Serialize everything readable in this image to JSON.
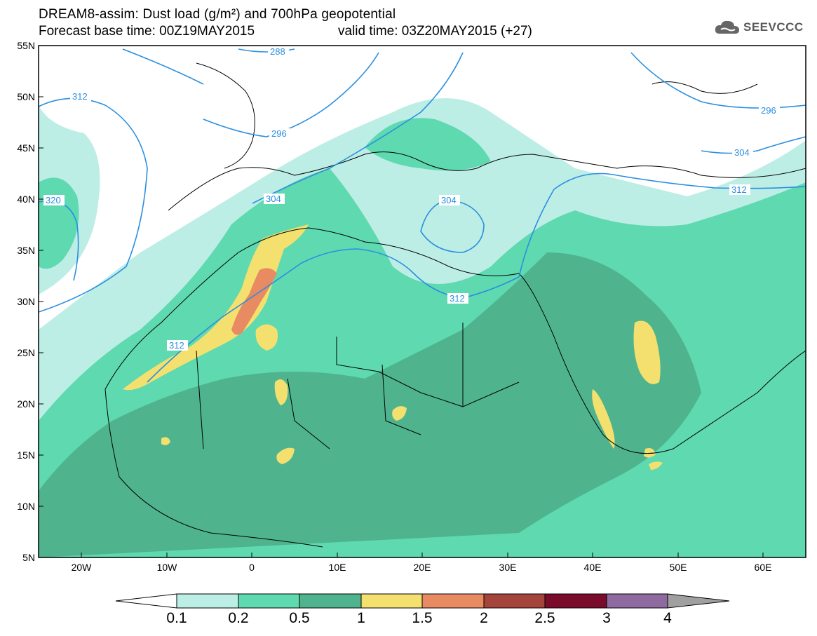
{
  "header": {
    "title_line1": "DREAM8-assim: Dust load (g/m²) and 700hPa geopotential",
    "base_time": "Forecast base time: 00Z19MAY2015",
    "valid_time": "valid time: 03Z20MAY2015 (+27)"
  },
  "logo": {
    "text": "SEEVCCC",
    "icon": "cloud-icon"
  },
  "map": {
    "lat_labels": [
      "55N",
      "50N",
      "45N",
      "40N",
      "35N",
      "30N",
      "25N",
      "20N",
      "15N",
      "10N",
      "5N"
    ],
    "lon_labels": [
      "20W",
      "10W",
      "0",
      "10E",
      "20E",
      "30E",
      "40E",
      "50E",
      "60E"
    ],
    "contour_labels": [
      "288",
      "312",
      "296",
      "304",
      "320",
      "304",
      "312",
      "312",
      "304",
      "312",
      "296"
    ]
  },
  "colorbar": {
    "labels": [
      "0.1",
      "0.2",
      "0.5",
      "1",
      "1.5",
      "2",
      "2.5",
      "3",
      "4"
    ],
    "colors": [
      "#ffffff",
      "#bdeee6",
      "#5ed9b0",
      "#4fb48e",
      "#f4e06e",
      "#e88a62",
      "#a5443a",
      "#7a0b2a",
      "#8e6aa0",
      "#a0a0a0"
    ]
  },
  "colors": {
    "land_low": "#bdeee6",
    "dust_02": "#5ed9b0",
    "dust_05": "#4fb48e",
    "dust_1": "#f4e06e",
    "dust_15": "#e88a62",
    "dust_2": "#cc6f5a",
    "contour": "#2a8fe0"
  }
}
